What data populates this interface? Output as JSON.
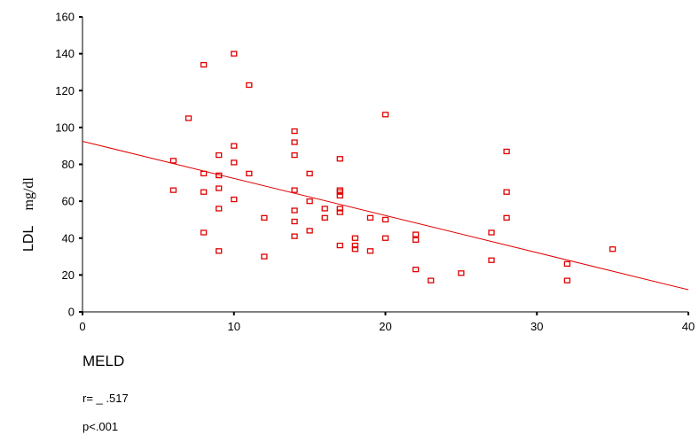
{
  "chart_data": {
    "type": "scatter",
    "xlabel": "MELD",
    "ylabel": "LDL",
    "ylabel_unit": "mg/dl",
    "xlim": [
      0,
      40
    ],
    "ylim": [
      0,
      160
    ],
    "xticks": [
      0,
      10,
      20,
      30,
      40
    ],
    "yticks": [
      0,
      20,
      40,
      60,
      80,
      100,
      120,
      140,
      160
    ],
    "grid": false,
    "colors": {
      "marker": "#e00000",
      "fit_line": "#e00000",
      "axis": "#000000"
    },
    "marker": "hollow-square",
    "points": [
      [
        6,
        82
      ],
      [
        6,
        66
      ],
      [
        7,
        105
      ],
      [
        8,
        134
      ],
      [
        8,
        75
      ],
      [
        8,
        65
      ],
      [
        8,
        43
      ],
      [
        9,
        85
      ],
      [
        9,
        74
      ],
      [
        9,
        74
      ],
      [
        9,
        67
      ],
      [
        9,
        56
      ],
      [
        9,
        33
      ],
      [
        10,
        140
      ],
      [
        10,
        90
      ],
      [
        10,
        81
      ],
      [
        10,
        61
      ],
      [
        11,
        123
      ],
      [
        11,
        75
      ],
      [
        12,
        51
      ],
      [
        12,
        30
      ],
      [
        14,
        98
      ],
      [
        14,
        92
      ],
      [
        14,
        85
      ],
      [
        14,
        66
      ],
      [
        14,
        55
      ],
      [
        14,
        49
      ],
      [
        14,
        41
      ],
      [
        15,
        75
      ],
      [
        15,
        60
      ],
      [
        15,
        44
      ],
      [
        16,
        56
      ],
      [
        16,
        51
      ],
      [
        17,
        83
      ],
      [
        17,
        66
      ],
      [
        17,
        65
      ],
      [
        17,
        63
      ],
      [
        17,
        56
      ],
      [
        17,
        54
      ],
      [
        17,
        36
      ],
      [
        18,
        40
      ],
      [
        18,
        36
      ],
      [
        18,
        34
      ],
      [
        19,
        51
      ],
      [
        19,
        33
      ],
      [
        20,
        107
      ],
      [
        20,
        50
      ],
      [
        20,
        40
      ],
      [
        22,
        42
      ],
      [
        22,
        39
      ],
      [
        22,
        23
      ],
      [
        23,
        17
      ],
      [
        25,
        21
      ],
      [
        27,
        43
      ],
      [
        27,
        28
      ],
      [
        28,
        87
      ],
      [
        28,
        65
      ],
      [
        28,
        51
      ],
      [
        32,
        26
      ],
      [
        32,
        17
      ],
      [
        35,
        34
      ]
    ],
    "fit_line": {
      "x": [
        0,
        40
      ],
      "y": [
        92.5,
        12
      ]
    }
  },
  "annotations": {
    "r_text": "r= _ .517",
    "p_text": "p<.001"
  }
}
